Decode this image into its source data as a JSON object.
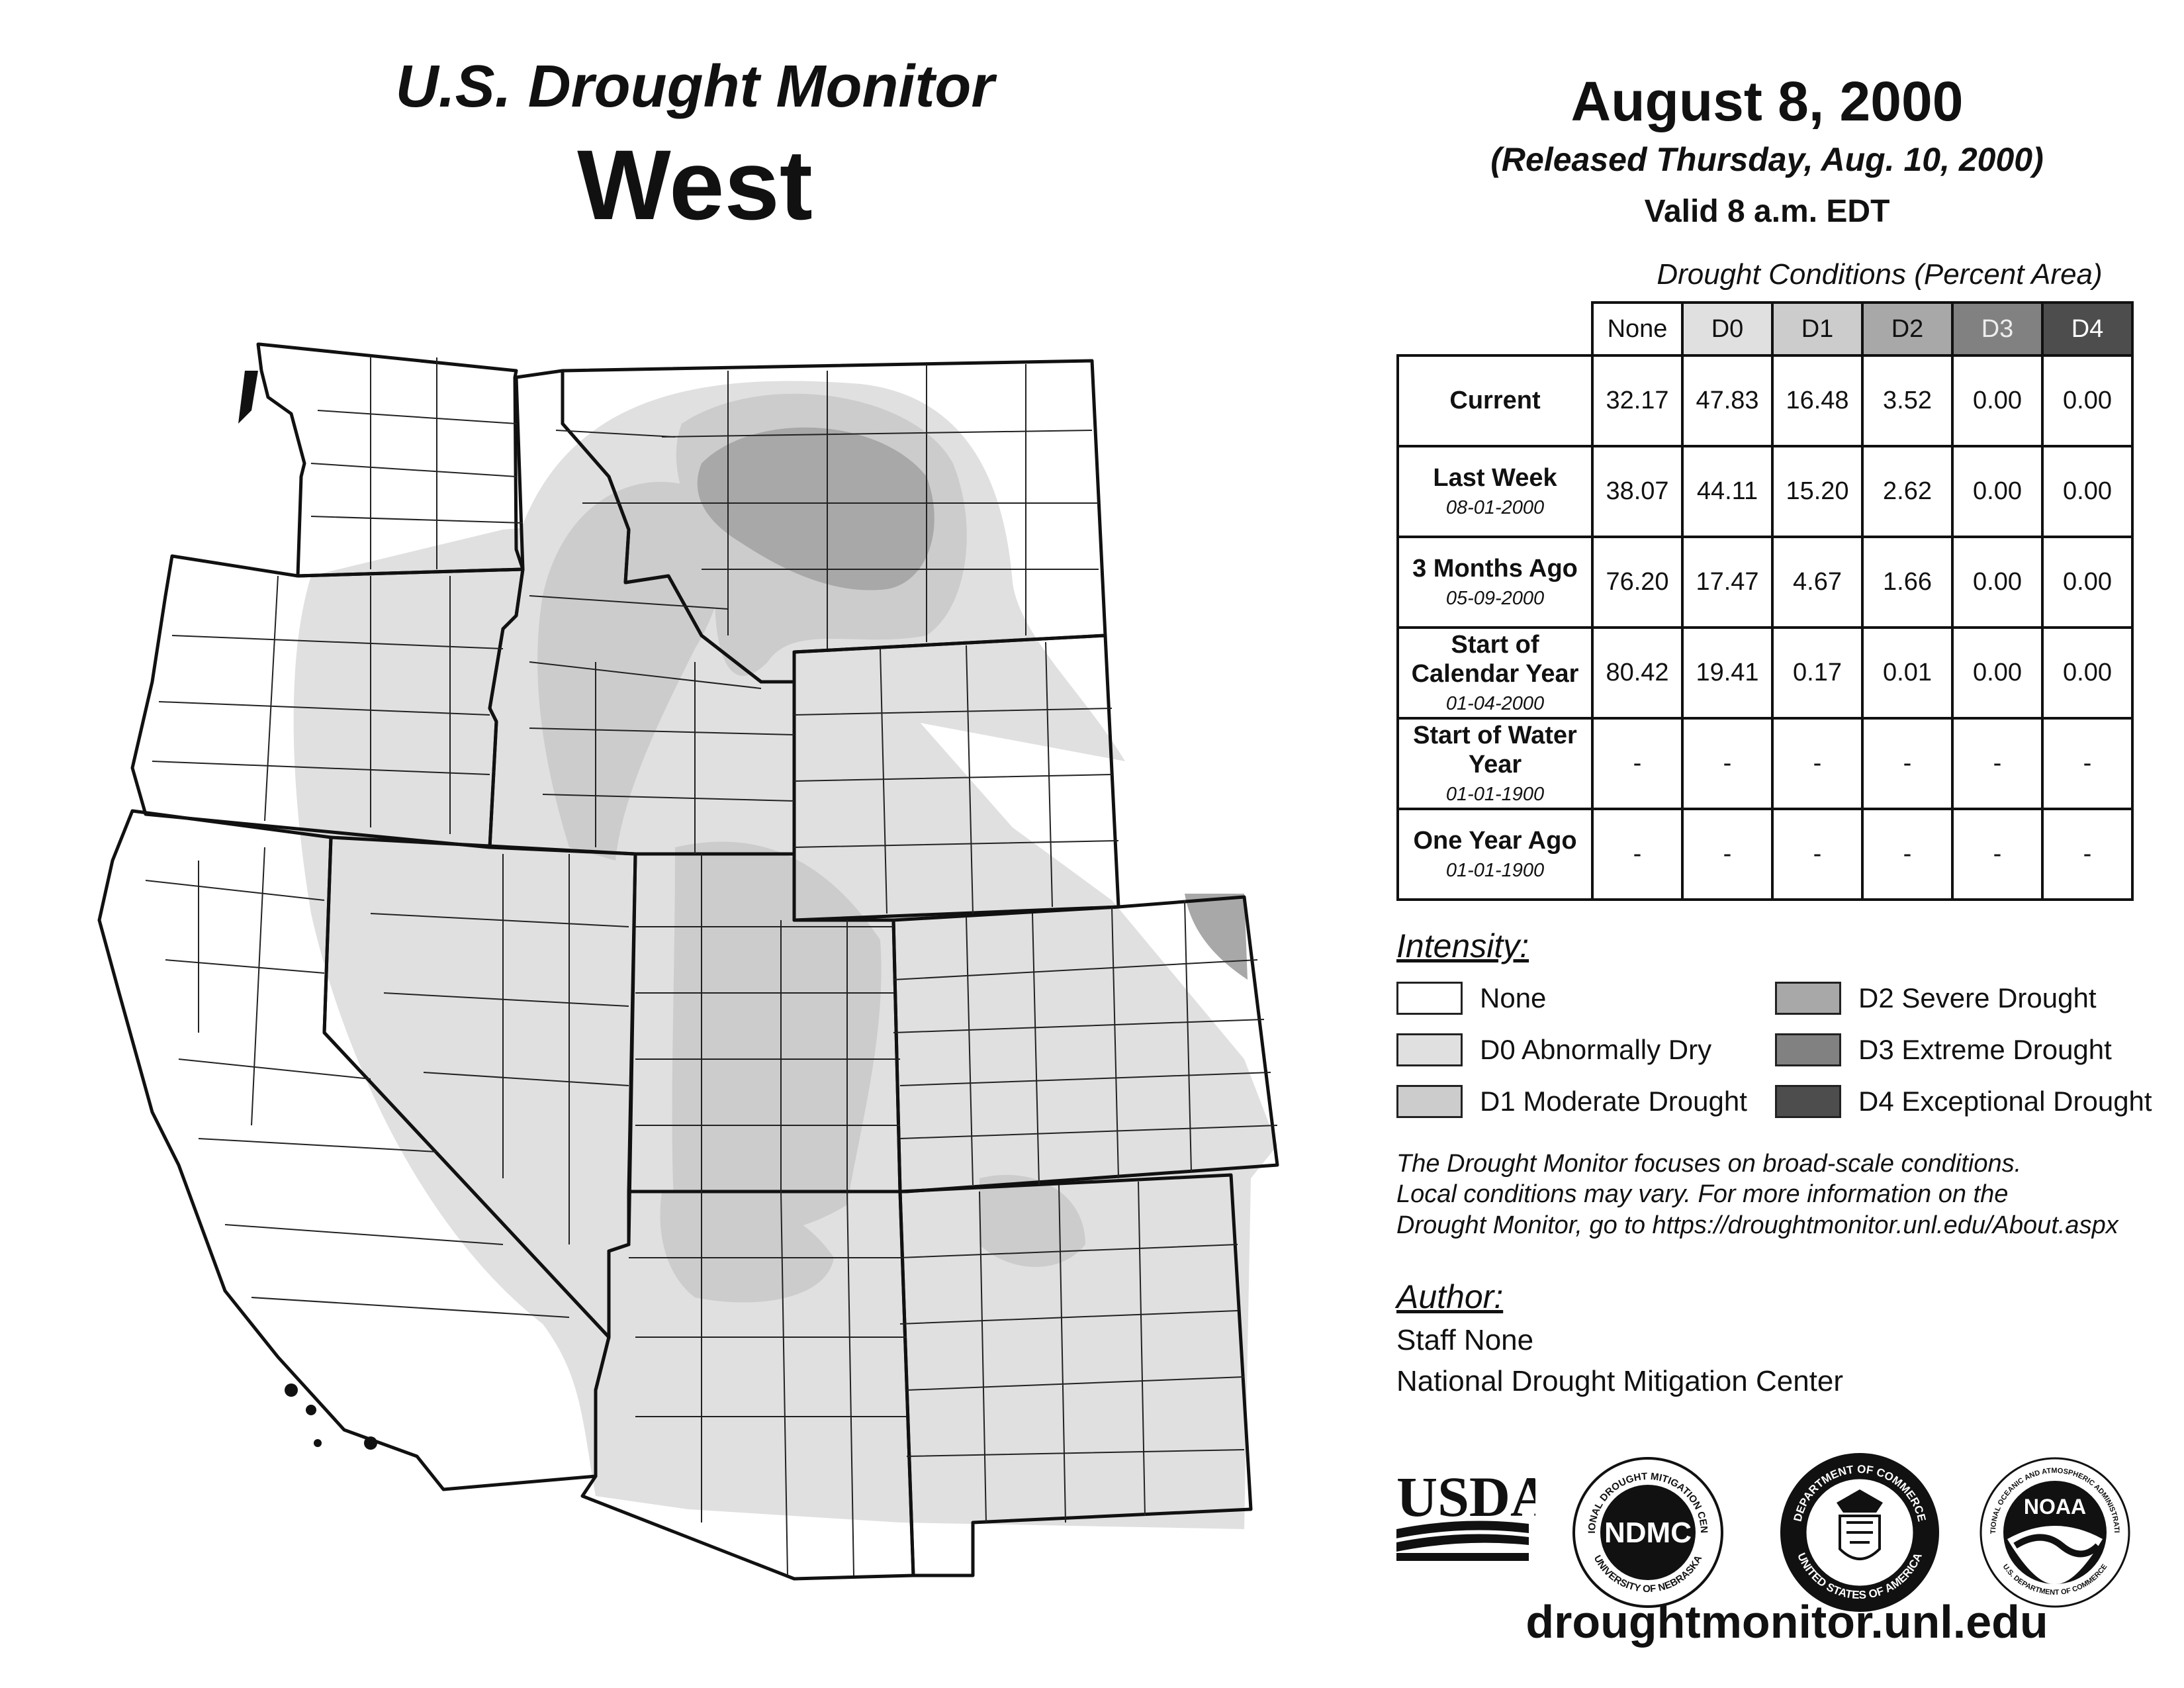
{
  "header": {
    "monitor_title": "U.S. Drought Monitor",
    "region_title": "West",
    "map_date": "August 8, 2000",
    "release_line": "(Released Thursday, Aug. 10, 2000)",
    "valid_line": "Valid 8 a.m. EDT"
  },
  "table": {
    "caption": "Drought Conditions (Percent Area)",
    "columns": [
      "None",
      "D0",
      "D1",
      "D2",
      "D3",
      "D4"
    ],
    "rows": [
      {
        "label": "Current",
        "date": "",
        "values": [
          "32.17",
          "47.83",
          "16.48",
          "3.52",
          "0.00",
          "0.00"
        ]
      },
      {
        "label": "Last Week",
        "date": "08-01-2000",
        "values": [
          "38.07",
          "44.11",
          "15.20",
          "2.62",
          "0.00",
          "0.00"
        ]
      },
      {
        "label": "3 Months Ago",
        "date": "05-09-2000",
        "values": [
          "76.20",
          "17.47",
          "4.67",
          "1.66",
          "0.00",
          "0.00"
        ]
      },
      {
        "label": "Start of Calendar Year",
        "date": "01-04-2000",
        "values": [
          "80.42",
          "19.41",
          "0.17",
          "0.01",
          "0.00",
          "0.00"
        ]
      },
      {
        "label": "Start of Water Year",
        "date": "01-01-1900",
        "values": [
          "-",
          "-",
          "-",
          "-",
          "-",
          "-"
        ]
      },
      {
        "label": "One Year Ago",
        "date": "01-01-1900",
        "values": [
          "-",
          "-",
          "-",
          "-",
          "-",
          "-"
        ]
      }
    ]
  },
  "legend": {
    "title": "Intensity:",
    "items": [
      {
        "label": "None",
        "color": "#ffffff"
      },
      {
        "label": "D0 Abnormally Dry",
        "color": "#e0e0e0"
      },
      {
        "label": "D1 Moderate Drought",
        "color": "#cccccc"
      },
      {
        "label": "D2 Severe Drought",
        "color": "#a8a8a8"
      },
      {
        "label": "D3 Extreme Drought",
        "color": "#818181"
      },
      {
        "label": "D4 Exceptional Drought",
        "color": "#4d4d4d"
      }
    ]
  },
  "note": {
    "line1": "The Drought Monitor focuses on broad-scale conditions.",
    "line2": "Local conditions may vary. For more information on the",
    "line3": "Drought Monitor, go to https://droughtmonitor.unl.edu/About.aspx"
  },
  "author": {
    "title": "Author:",
    "name": "Staff None",
    "org": "National Drought Mitigation Center"
  },
  "logos": {
    "usda": "USDA",
    "ndmc": "NDMC",
    "ndmc_ring_top": "NATIONAL DROUGHT MITIGATION CENTER",
    "ndmc_ring_bottom": "UNIVERSITY OF NEBRASKA",
    "doc_ring_top": "DEPARTMENT OF COMMERCE",
    "doc_ring_bottom": "UNITED STATES OF AMERICA",
    "noaa": "NOAA",
    "noaa_ring_top": "NATIONAL OCEANIC AND ATMOSPHERIC ADMINISTRATION",
    "noaa_ring_bottom": "U.S. DEPARTMENT OF COMMERCE"
  },
  "website": "droughtmonitor.unl.edu",
  "map_colors": {
    "border": "#111111",
    "d0": "#e0e0e0",
    "d1": "#cccccc",
    "d2": "#a8a8a8"
  }
}
